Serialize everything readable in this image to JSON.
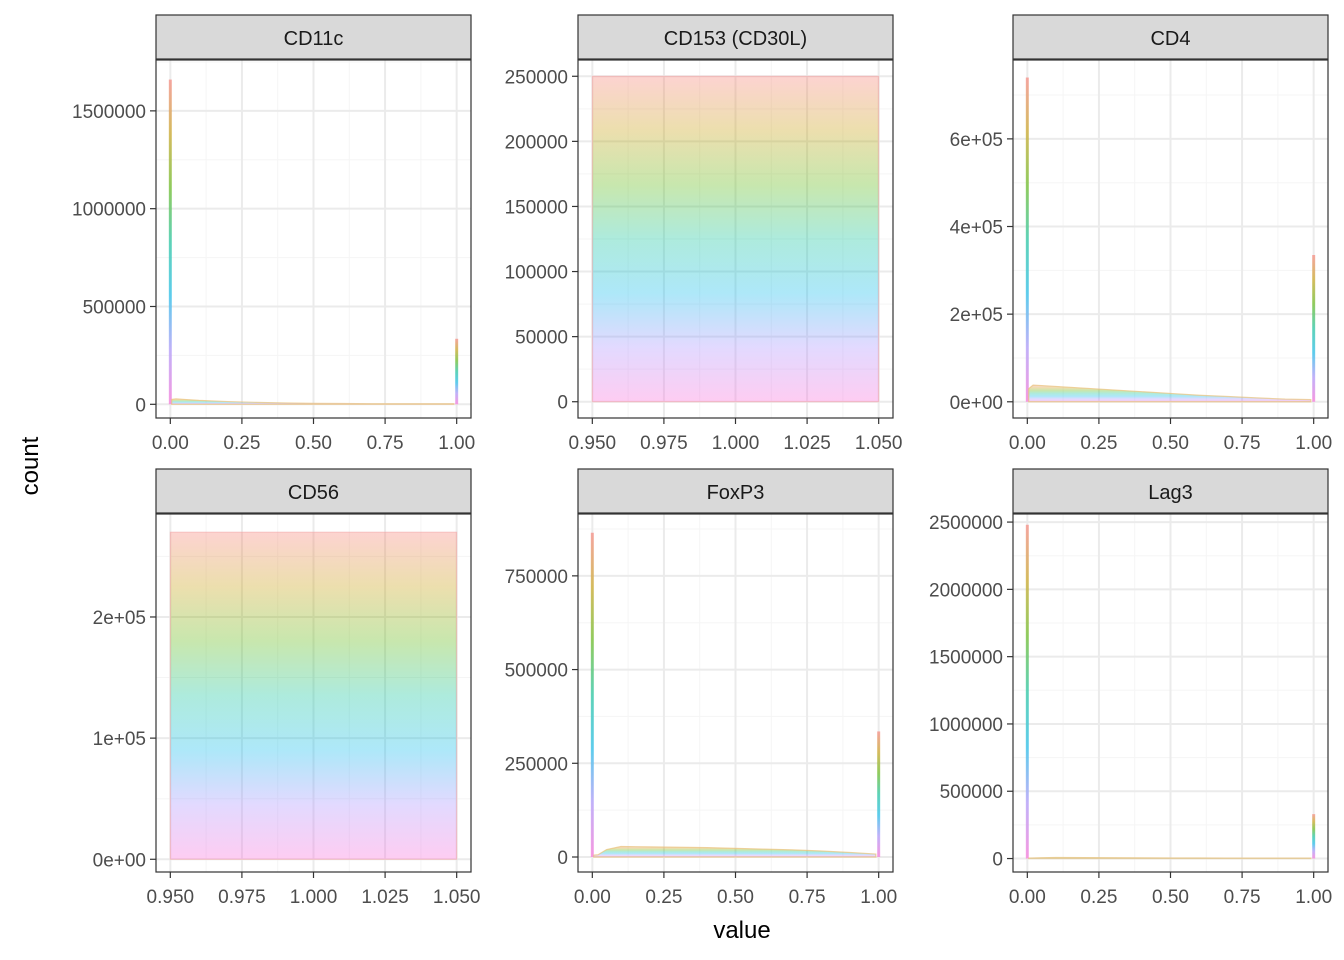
{
  "figure": {
    "xlabel": "value",
    "ylabel": "count"
  },
  "colors": {
    "strip_fill": "#d9d9d9",
    "panel_border": "#333333",
    "grid_major": "#ebebeb",
    "grid_minor": "#f5f5f5",
    "tick_text": "#4d4d4d",
    "gradient_stops": [
      "#f8766d",
      "#c49a00",
      "#53b400",
      "#00c094",
      "#00b6eb",
      "#a58aff",
      "#fb61d7"
    ]
  },
  "chart_data": [
    {
      "type": "area",
      "title": "CD11c",
      "xlim": [
        -0.05,
        1.05
      ],
      "ylim": [
        -70000,
        1760000
      ],
      "x_ticks": [
        0,
        0.25,
        0.5,
        0.75,
        1
      ],
      "x_tick_labels": [
        "0.00",
        "0.25",
        "0.50",
        "0.75",
        "1.00"
      ],
      "y_ticks": [
        0,
        500000,
        1000000,
        1500000
      ],
      "y_tick_labels": [
        "0",
        "500000",
        "1000000",
        "1500000"
      ],
      "x": [
        0.0,
        0.005,
        0.02,
        0.05,
        0.1,
        0.2,
        0.3,
        0.4,
        0.5,
        0.6,
        0.7,
        0.8,
        0.9,
        0.99,
        1.0
      ],
      "y": [
        1660000,
        25000,
        28000,
        25000,
        20000,
        14000,
        10000,
        7000,
        5000,
        4000,
        3000,
        3000,
        3000,
        3000,
        335000
      ],
      "style": "spiky"
    },
    {
      "type": "area",
      "title": "CD153 (CD30L)",
      "xlim": [
        0.945,
        1.055
      ],
      "ylim": [
        -12500,
        262500
      ],
      "x_ticks": [
        0.95,
        0.975,
        1.0,
        1.025,
        1.05
      ],
      "x_tick_labels": [
        "0.950",
        "0.975",
        "1.000",
        "1.025",
        "1.050"
      ],
      "y_ticks": [
        0,
        50000,
        100000,
        150000,
        200000,
        250000
      ],
      "y_tick_labels": [
        "0",
        "50000",
        "100000",
        "150000",
        "200000",
        "250000"
      ],
      "x": [
        0.95,
        1.05
      ],
      "y": [
        250000,
        250000
      ],
      "style": "block"
    },
    {
      "type": "area",
      "title": "CD4",
      "xlim": [
        -0.05,
        1.05
      ],
      "ylim": [
        -37000,
        780000
      ],
      "x_ticks": [
        0,
        0.25,
        0.5,
        0.75,
        1
      ],
      "x_tick_labels": [
        "0.00",
        "0.25",
        "0.50",
        "0.75",
        "1.00"
      ],
      "y_ticks": [
        0,
        200000,
        400000,
        600000
      ],
      "y_tick_labels": [
        "0e+00",
        "2e+05",
        "4e+05",
        "6e+05"
      ],
      "x": [
        0.0,
        0.005,
        0.02,
        0.05,
        0.1,
        0.2,
        0.3,
        0.4,
        0.5,
        0.6,
        0.7,
        0.8,
        0.9,
        0.99,
        1.0
      ],
      "y": [
        740000,
        30000,
        38000,
        37000,
        35000,
        31000,
        27000,
        23000,
        19000,
        15000,
        12000,
        9000,
        6000,
        5000,
        335000
      ],
      "style": "spiky"
    },
    {
      "type": "area",
      "title": "CD56",
      "xlim": [
        0.945,
        1.055
      ],
      "ylim": [
        -10500,
        285000
      ],
      "x_ticks": [
        0.95,
        0.975,
        1.0,
        1.025,
        1.05
      ],
      "x_tick_labels": [
        "0.950",
        "0.975",
        "1.000",
        "1.025",
        "1.050"
      ],
      "y_ticks": [
        0,
        100000,
        200000
      ],
      "y_tick_labels": [
        "0e+00",
        "1e+05",
        "2e+05"
      ],
      "x": [
        0.95,
        1.05
      ],
      "y": [
        270000,
        270000
      ],
      "style": "block"
    },
    {
      "type": "area",
      "title": "FoxP3",
      "xlim": [
        -0.05,
        1.05
      ],
      "ylim": [
        -40000,
        915000
      ],
      "x_ticks": [
        0,
        0.25,
        0.5,
        0.75,
        1
      ],
      "x_tick_labels": [
        "0.00",
        "0.25",
        "0.50",
        "0.75",
        "1.00"
      ],
      "y_ticks": [
        0,
        250000,
        500000,
        750000
      ],
      "y_tick_labels": [
        "0",
        "250000",
        "500000",
        "750000"
      ],
      "x": [
        0.0,
        0.005,
        0.02,
        0.05,
        0.1,
        0.2,
        0.3,
        0.4,
        0.5,
        0.6,
        0.7,
        0.8,
        0.9,
        0.99,
        1.0
      ],
      "y": [
        865000,
        5000,
        6000,
        20000,
        28000,
        27000,
        26000,
        25000,
        23000,
        21000,
        19000,
        16000,
        12000,
        8000,
        335000
      ],
      "style": "spiky"
    },
    {
      "type": "area",
      "title": "Lag3",
      "xlim": [
        -0.05,
        1.05
      ],
      "ylim": [
        -100000,
        2560000
      ],
      "x_ticks": [
        0,
        0.25,
        0.5,
        0.75,
        1
      ],
      "x_tick_labels": [
        "0.00",
        "0.25",
        "0.50",
        "0.75",
        "1.00"
      ],
      "y_ticks": [
        0,
        500000,
        1000000,
        1500000,
        2000000,
        2500000
      ],
      "y_tick_labels": [
        "0",
        "500000",
        "1000000",
        "1500000",
        "2000000",
        "2500000"
      ],
      "x": [
        0.0,
        0.005,
        0.02,
        0.05,
        0.1,
        0.2,
        0.3,
        0.4,
        0.5,
        0.6,
        0.7,
        0.8,
        0.9,
        0.99,
        1.0
      ],
      "y": [
        2480000,
        3000,
        4000,
        6000,
        8000,
        7000,
        6000,
        5000,
        4000,
        4000,
        3000,
        3000,
        3000,
        3000,
        330000
      ],
      "style": "spiky"
    }
  ]
}
